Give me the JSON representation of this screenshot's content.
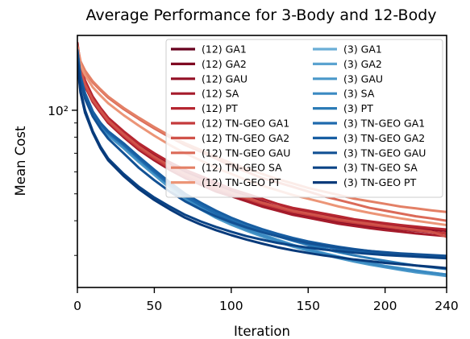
{
  "chart_data": {
    "type": "line",
    "title": "Average Performance for 3-Body and 12-Body",
    "xlabel": "Iteration",
    "ylabel": "Mean Cost",
    "xlim": [
      0,
      240
    ],
    "ylim": [
      23,
      186
    ],
    "yscale": "log",
    "xticks": [
      0,
      50,
      100,
      150,
      200,
      240
    ],
    "xtick_labels": [
      "0",
      "50",
      "100",
      "150",
      "200",
      "240"
    ],
    "yticks_major": [
      100
    ],
    "ytick_labels": [
      "10²"
    ],
    "yticks_minor": [
      30,
      40,
      50,
      60,
      70,
      80,
      90
    ],
    "grid": false,
    "legend": {
      "placement": "top-right",
      "columns": 2
    },
    "x": [
      0,
      2,
      5,
      10,
      15,
      20,
      30,
      40,
      50,
      60,
      70,
      80,
      90,
      100,
      110,
      120,
      130,
      140,
      150,
      160,
      170,
      180,
      190,
      200,
      210,
      220,
      230,
      240
    ],
    "series": [
      {
        "name": "(12) GA1",
        "color": "#67001f",
        "values": [
          170,
          142,
          125,
          110,
          100,
          92,
          82,
          74,
          68,
          63,
          59,
          56,
          53,
          50,
          48,
          46,
          44,
          43,
          42,
          41,
          40,
          39,
          38.5,
          38,
          37.5,
          37,
          36.5,
          36
        ]
      },
      {
        "name": "(12) GA2",
        "color": "#7f0a22",
        "values": [
          168,
          140,
          124,
          109,
          99,
          91,
          81,
          73,
          67,
          62,
          58,
          55,
          52,
          49.5,
          47.5,
          45.5,
          44,
          42.5,
          41.5,
          40.5,
          39.5,
          38.8,
          38.2,
          37.7,
          37.2,
          36.8,
          36.4,
          36
        ]
      },
      {
        "name": "(12) GAU",
        "color": "#930f25",
        "values": [
          172,
          143,
          126,
          111,
          101,
          93,
          83,
          75,
          69,
          64,
          60,
          57,
          54,
          51,
          49,
          47,
          45,
          44,
          43,
          42,
          41,
          40,
          39.3,
          38.7,
          38.1,
          37.6,
          37.2,
          36.8
        ]
      },
      {
        "name": "(12) SA",
        "color": "#a51b2b",
        "values": [
          166,
          138,
          122,
          107,
          98,
          90,
          80,
          72,
          66,
          61,
          57,
          54,
          51,
          49,
          47,
          45,
          43.5,
          42,
          41,
          40,
          39,
          38.3,
          37.6,
          37,
          36.5,
          36,
          35.6,
          35.2
        ]
      },
      {
        "name": "(12) PT",
        "color": "#b52630",
        "values": [
          175,
          145,
          128,
          112,
          102,
          94,
          84,
          76,
          70,
          65,
          61,
          58,
          55,
          52,
          50,
          48,
          46,
          44.5,
          43.5,
          42.5,
          41.5,
          40.5,
          39.8,
          39.2,
          38.6,
          38.1,
          37.6,
          37.2
        ]
      },
      {
        "name": "(12) TN-GEO GA1",
        "color": "#c43a3c",
        "values": [
          168,
          140,
          123,
          108,
          99,
          91,
          81,
          73,
          67,
          62,
          58,
          55,
          52,
          50,
          48,
          46,
          44.5,
          43,
          42,
          41,
          40,
          39.3,
          38.6,
          38,
          37.4,
          36.9,
          36.4,
          36
        ]
      },
      {
        "name": "(12) TN-GEO GA2",
        "color": "#d0534a",
        "values": [
          169,
          141,
          124,
          109,
          100,
          92,
          82,
          74,
          68,
          63,
          59,
          56,
          53,
          50.5,
          48.5,
          46.5,
          45,
          43.5,
          42.5,
          41.5,
          40.5,
          39.7,
          39,
          38.3,
          37.7,
          37.1,
          36.5,
          35
        ]
      },
      {
        "name": "(12) TN-GEO GAU",
        "color": "#db6a58",
        "values": [
          171,
          150,
          138,
          126,
          118,
          111,
          101,
          93,
          86,
          80,
          75,
          71,
          67,
          63,
          60,
          57,
          55,
          53,
          51,
          49,
          47.5,
          46,
          44.5,
          43.5,
          42.5,
          41.5,
          40.8,
          40
        ]
      },
      {
        "name": "(12) TN-GEO SA",
        "color": "#e38066",
        "values": [
          170,
          150,
          139,
          127,
          119,
          112,
          102,
          94,
          87,
          81,
          76,
          72,
          68,
          64.5,
          61.5,
          59,
          56.5,
          54.5,
          52.5,
          51,
          49.5,
          48,
          47,
          46,
          45,
          44.3,
          43.6,
          43
        ]
      },
      {
        "name": "(12) TN-GEO PT",
        "color": "#ec9577",
        "values": [
          168,
          146,
          134,
          121,
          113,
          106,
          96,
          88,
          81,
          75,
          70,
          66,
          62,
          59,
          56,
          53.5,
          51.5,
          49.5,
          48,
          46.5,
          45,
          43.8,
          42.7,
          41.7,
          40.8,
          40,
          39.3,
          38.6
        ]
      },
      {
        "name": "(3) GA1",
        "color": "#6aaed6",
        "values": [
          160,
          130,
          112,
          97,
          88,
          82,
          74,
          66,
          59,
          53,
          48,
          44.5,
          41.5,
          39,
          37,
          35.3,
          33.8,
          32.5,
          31.3,
          30.3,
          29.4,
          28.6,
          27.9,
          27.3,
          26.8,
          26.3,
          25.9,
          25.5
        ]
      },
      {
        "name": "(3) GA2",
        "color": "#5ba3d0",
        "values": [
          162,
          131,
          113,
          98,
          89,
          83,
          75,
          67,
          60,
          54,
          49,
          45,
          42,
          39.5,
          37.5,
          35.8,
          34.2,
          32.8,
          31.6,
          30.6,
          29.7,
          28.9,
          28.2,
          27.5,
          27,
          26.5,
          26,
          25.6
        ]
      },
      {
        "name": "(3) GAU",
        "color": "#4a98c9",
        "values": [
          158,
          129,
          111,
          96,
          87,
          81,
          73,
          65,
          58.5,
          52.5,
          47.5,
          44,
          41,
          38.7,
          36.8,
          35.1,
          33.6,
          32.3,
          31.2,
          30.2,
          29.3,
          28.5,
          27.8,
          27.2,
          26.6,
          26.1,
          25.7,
          25.3
        ]
      },
      {
        "name": "(3) SA",
        "color": "#3a8ac2",
        "values": [
          161,
          130,
          112,
          97,
          88,
          82,
          74,
          66,
          59.5,
          53.5,
          48.5,
          44.8,
          41.8,
          39.2,
          37.2,
          35.5,
          34,
          32.7,
          31.5,
          30.5,
          29.6,
          28.8,
          28.1,
          27.4,
          26.9,
          26.4,
          26,
          25.6
        ]
      },
      {
        "name": "(3) PT",
        "color": "#2c7bb6",
        "values": [
          165,
          133,
          115,
          99,
          90,
          84,
          76,
          68,
          61,
          55,
          50,
          46,
          43,
          40.5,
          38.5,
          36.7,
          35.2,
          33.9,
          32.7,
          31.7,
          30.8,
          30,
          29.3,
          28.7,
          28.1,
          27.6,
          27.2,
          26.8
        ]
      },
      {
        "name": "(3) TN-GEO GA1",
        "color": "#1f6aad",
        "values": [
          163,
          132,
          114,
          98,
          89,
          83,
          75,
          67,
          60,
          54,
          49,
          45.5,
          42.5,
          40,
          38,
          36.5,
          35.2,
          34,
          33,
          32.3,
          31.7,
          31.2,
          30.8,
          30.5,
          30.2,
          30,
          29.8,
          29.6
        ]
      },
      {
        "name": "(3) TN-GEO GA2",
        "color": "#185ea2",
        "values": [
          164,
          133,
          115,
          99,
          90,
          84,
          76,
          68,
          61,
          55,
          50,
          46.5,
          43.5,
          41,
          39,
          37.3,
          35.9,
          34.7,
          33.7,
          32.9,
          32.2,
          31.6,
          31.1,
          30.7,
          30.4,
          30.1,
          29.9,
          29.7
        ]
      },
      {
        "name": "(3) TN-GEO GAU",
        "color": "#125194",
        "values": [
          160,
          128,
          110,
          95,
          86,
          79,
          70,
          62,
          56,
          51,
          47,
          44,
          41.5,
          39.5,
          37.8,
          36.4,
          35.2,
          34.2,
          33.3,
          32.6,
          32,
          31.5,
          31.1,
          30.8,
          30.5,
          30.3,
          30.1,
          29.9
        ]
      },
      {
        "name": "(3) TN-GEO SA",
        "color": "#0b4486",
        "values": [
          150,
          118,
          100,
          84,
          74,
          67,
          59,
          53,
          48.5,
          45,
          42,
          39.8,
          38,
          36.5,
          35.2,
          34.2,
          33.3,
          32.6,
          32,
          31.5,
          31.1,
          30.7,
          30.4,
          30.1,
          29.9,
          29.7,
          29.5,
          29.3
        ]
      },
      {
        "name": "(3) TN-GEO PT",
        "color": "#083a7a",
        "values": [
          148,
          116,
          98,
          83,
          73,
          66,
          58,
          52,
          47.5,
          44,
          41,
          38.8,
          37,
          35.5,
          34.2,
          33.1,
          32.1,
          31.3,
          30.6,
          30,
          29.5,
          29,
          28.6,
          28.2,
          27.9,
          27.6,
          27.3,
          27
        ]
      }
    ]
  }
}
